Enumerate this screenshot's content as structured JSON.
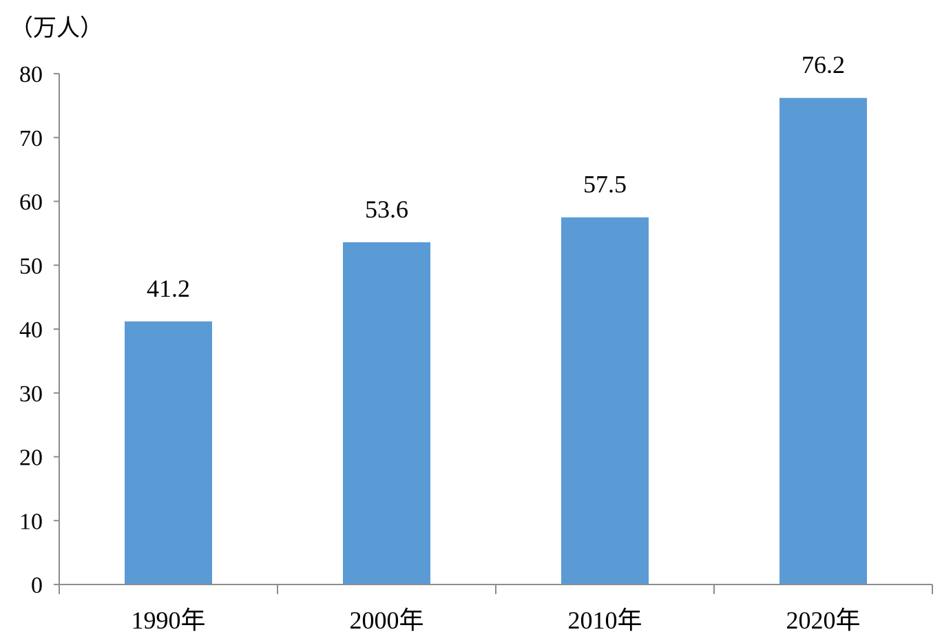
{
  "chart_data": {
    "type": "bar",
    "title": "",
    "xlabel": "",
    "ylabel": "（万人）",
    "categories": [
      "1990年",
      "2000年",
      "2010年",
      "2020年"
    ],
    "values": [
      41.2,
      53.6,
      57.5,
      76.2
    ],
    "data_labels": [
      "41.2",
      "53.6",
      "57.5",
      "76.2"
    ],
    "ylim": [
      0,
      80
    ],
    "yticks": [
      0,
      10,
      20,
      30,
      40,
      50,
      60,
      70,
      80
    ],
    "grid": false,
    "bar_color": "#5b9bd5",
    "axis_color": "#8c8c8c"
  }
}
